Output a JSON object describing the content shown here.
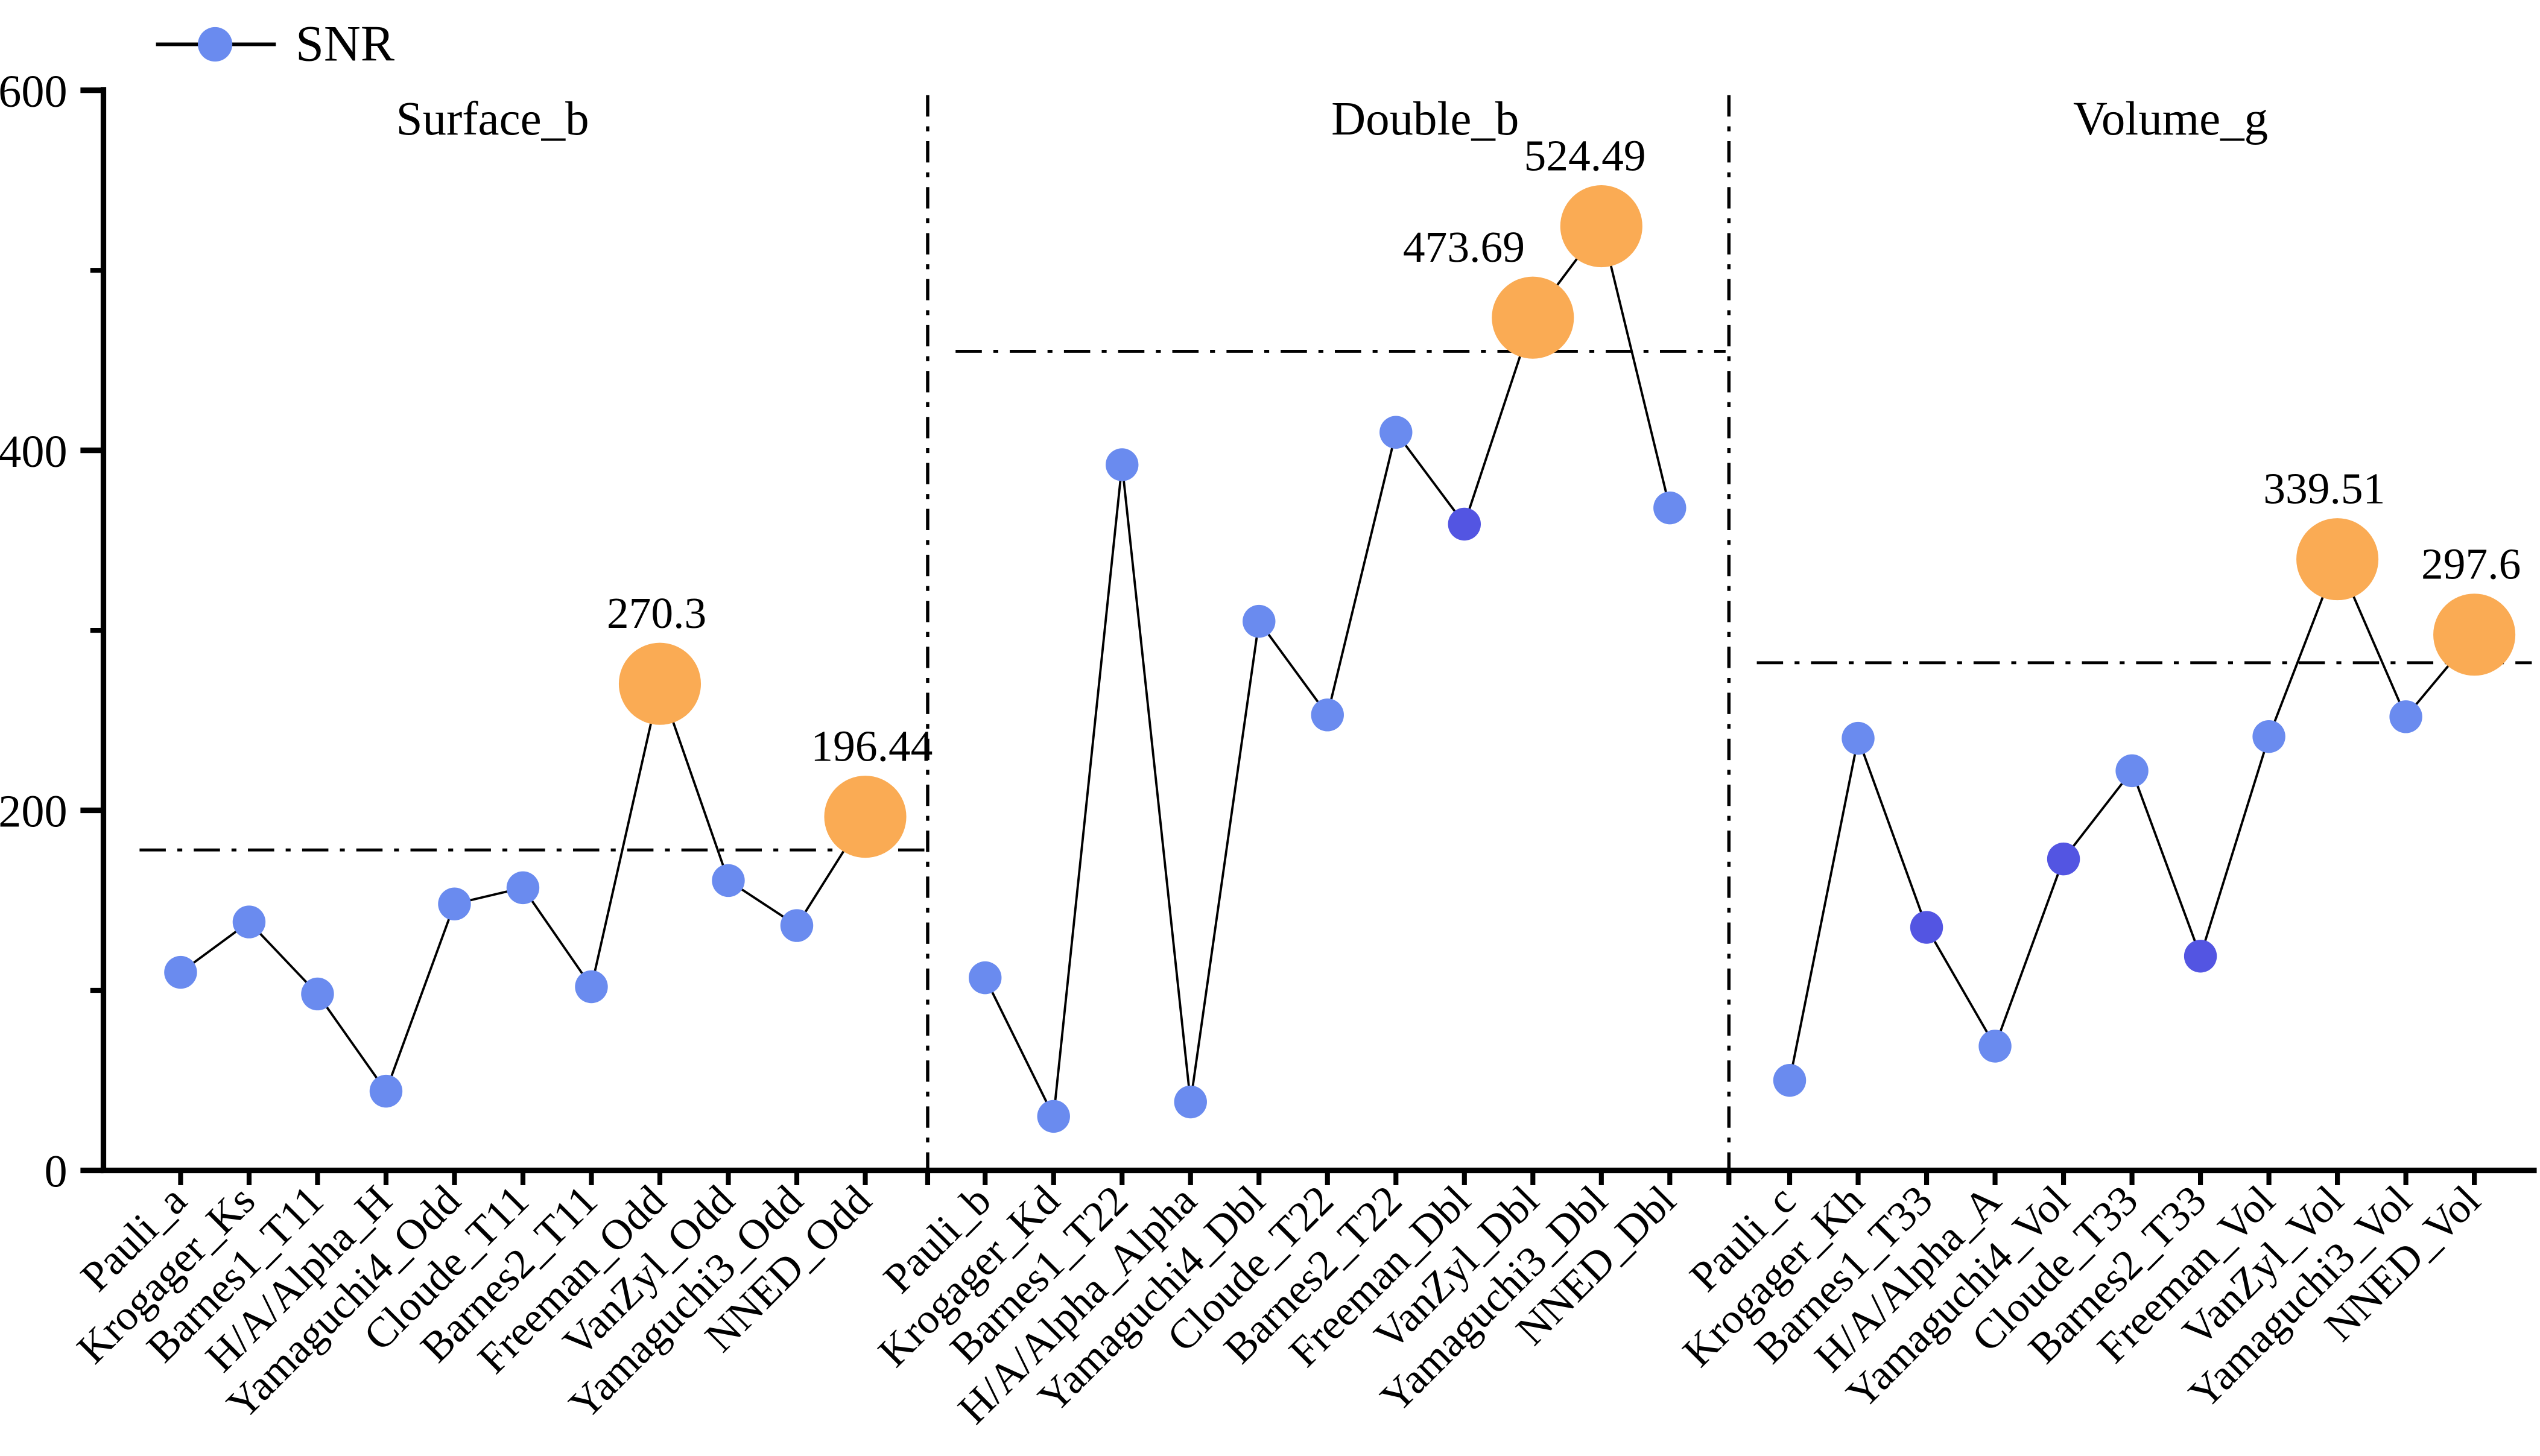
{
  "figure_title": "",
  "legend": {
    "series_label": "SNR"
  },
  "colors": {
    "point": "#6a8bef",
    "point_dark": "#5355e2",
    "highlight": "#faab54",
    "series_line": "#000000",
    "axis": "#000000"
  },
  "chart_data": {
    "type": "line",
    "title": "",
    "xlabel": "",
    "ylabel": "",
    "ylim": [
      0,
      600
    ],
    "yticks": [
      0,
      200,
      400,
      600
    ],
    "yminor": [
      100,
      300,
      500
    ],
    "grid": false,
    "legend_position": "top-left",
    "legend": [
      "SNR"
    ],
    "panels": [
      {
        "title": "Surface_b",
        "reference_line": 178,
        "categories": [
          "Pauli_a",
          "Krogager_Ks",
          "Barnes1_T11",
          "H/A/Alpha_H",
          "Yamaguchi4_Odd",
          "Cloude_T11",
          "Barnes2_T11",
          "Freeman_Odd",
          "VanZyl_Odd",
          "Yamaguchi3_Odd",
          "NNED_Odd"
        ],
        "values": [
          110,
          138,
          98,
          44,
          148,
          157,
          102,
          270.3,
          161,
          136,
          196.44
        ],
        "dark_points": [],
        "highlighted": [
          {
            "category": "Freeman_Odd",
            "value": 270.3,
            "label": "270.3",
            "dx": -2
          },
          {
            "category": "NNED_Odd",
            "value": 196.44,
            "label": "196.44",
            "dx": 4
          }
        ]
      },
      {
        "title": "Double_b",
        "reference_line": 455,
        "categories": [
          "Pauli_b",
          "Krogager_Kd",
          "Barnes1_T22",
          "H/A/Alpha_Alpha",
          "Yamaguchi4_Dbl",
          "Cloude_T22",
          "Barnes2_T22",
          "Freeman_Dbl",
          "VanZyl_Dbl",
          "Yamaguchi3_Dbl",
          "NNED_Dbl"
        ],
        "values": [
          107,
          30,
          392,
          38,
          305,
          253,
          410,
          359,
          473.69,
          524.49,
          368
        ],
        "dark_points": [
          "Freeman_Dbl"
        ],
        "highlighted": [
          {
            "category": "VanZyl_Dbl",
            "value": 473.69,
            "label": "473.69",
            "dx": -42
          },
          {
            "category": "Yamaguchi3_Dbl",
            "value": 524.49,
            "label": "524.49",
            "dx": -10
          }
        ]
      },
      {
        "title": "Volume_g",
        "reference_line": 282,
        "categories": [
          "Pauli_c",
          "Krogager_Kh",
          "Barnes1_T33",
          "H/A/Alpha_A",
          "Yamaguchi4_Vol",
          "Cloude_T33",
          "Barnes2_T33",
          "Freeman_Vol",
          "VanZyl_Vol",
          "Yamaguchi3_Vol",
          "NNED_Vol"
        ],
        "values": [
          50,
          240,
          135,
          69,
          173,
          222,
          119,
          241,
          339.51,
          252,
          297.6
        ],
        "dark_points": [
          "Barnes1_T33",
          "Yamaguchi4_Vol",
          "Barnes2_T33"
        ],
        "highlighted": [
          {
            "category": "VanZyl_Vol",
            "value": 339.51,
            "label": "339.51",
            "dx": -8
          },
          {
            "category": "NNED_Vol",
            "value": 297.6,
            "label": "297.6",
            "dx": -2
          }
        ]
      }
    ]
  }
}
